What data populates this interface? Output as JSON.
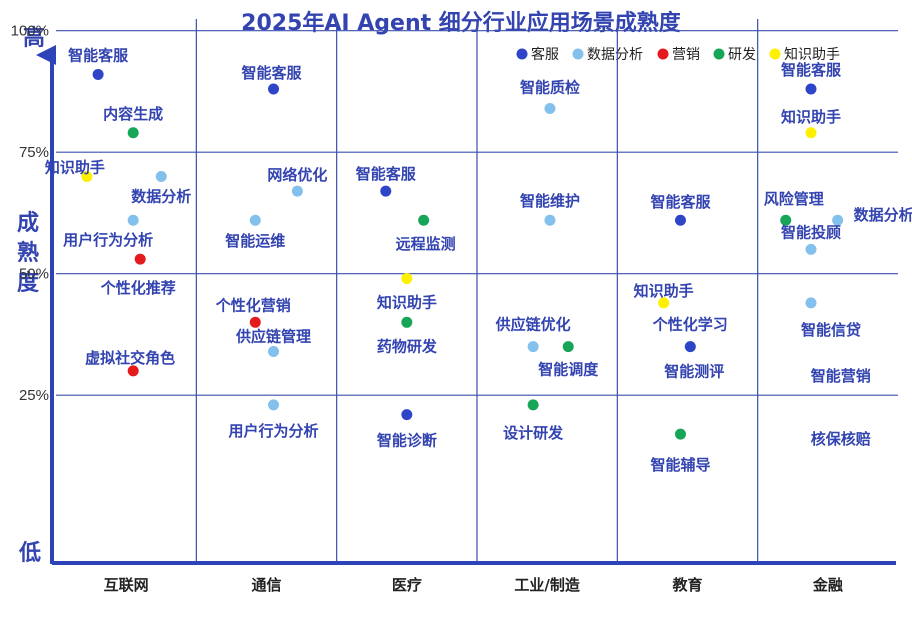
{
  "chart_data": {
    "type": "scatter",
    "title": "2025年AI Agent 细分行业应用场景成熟度",
    "ylabel": "成熟度",
    "y_high_label": "高",
    "y_low_label": "低",
    "categories": [
      "互联网",
      "通信",
      "医疗",
      "工业/制造",
      "教育",
      "金融"
    ],
    "y_ticks": [
      {
        "value": 100,
        "label": "100%"
      },
      {
        "value": 75,
        "label": "75%"
      },
      {
        "value": 50,
        "label": "50%"
      },
      {
        "value": 25,
        "label": "25%"
      }
    ],
    "ylim": [
      -5,
      102
    ],
    "grid": true,
    "legend_position": "top-right",
    "series": [
      {
        "name": "客服",
        "color": "#2f45c8"
      },
      {
        "name": "数据分析",
        "color": "#83c0ec"
      },
      {
        "name": "营销",
        "color": "#e41a1c"
      },
      {
        "name": "研发",
        "color": "#17a657"
      },
      {
        "name": "知识助手",
        "color": "#ffef00"
      }
    ],
    "points": [
      {
        "category": "互联网",
        "x": 0.3,
        "y": 91,
        "series": "客服",
        "label": "智能客服"
      },
      {
        "category": "互联网",
        "x": 0.55,
        "y": 79,
        "series": "研发",
        "label": "内容生成"
      },
      {
        "category": "互联网",
        "x": 0.75,
        "y": 70,
        "series": "数据分析",
        "label": "数据分析"
      },
      {
        "category": "互联网",
        "x": 0.22,
        "y": 70,
        "series": "知识助手",
        "label": "知识助手"
      },
      {
        "category": "互联网",
        "x": 0.55,
        "y": 61,
        "series": "数据分析",
        "label": "用户行为分析"
      },
      {
        "category": "互联网",
        "x": 0.6,
        "y": 53,
        "series": "营销",
        "label": "个性化推荐"
      },
      {
        "category": "互联网",
        "x": 0.55,
        "y": 30,
        "series": "营销",
        "label": "虚拟社交角色"
      },
      {
        "category": "通信",
        "x": 0.55,
        "y": 88,
        "series": "客服",
        "label": "智能客服"
      },
      {
        "category": "通信",
        "x": 0.72,
        "y": 67,
        "series": "数据分析",
        "label": "网络优化"
      },
      {
        "category": "通信",
        "x": 0.42,
        "y": 61,
        "series": "数据分析",
        "label": "智能运维"
      },
      {
        "category": "通信",
        "x": 0.42,
        "y": 40,
        "series": "营销",
        "label": "个性化营销"
      },
      {
        "category": "通信",
        "x": 0.55,
        "y": 34,
        "series": "数据分析",
        "label": "供应链管理"
      },
      {
        "category": "通信",
        "x": 0.55,
        "y": 23,
        "series": "数据分析",
        "label": "用户行为分析"
      },
      {
        "category": "医疗",
        "x": 0.35,
        "y": 67,
        "series": "客服",
        "label": "智能客服"
      },
      {
        "category": "医疗",
        "x": 0.62,
        "y": 61,
        "series": "研发",
        "label": "远程监测"
      },
      {
        "category": "医疗",
        "x": 0.5,
        "y": 49,
        "series": "知识助手",
        "label": "知识助手"
      },
      {
        "category": "医疗",
        "x": 0.5,
        "y": 40,
        "series": "研发",
        "label": "药物研发"
      },
      {
        "category": "医疗",
        "x": 0.5,
        "y": 21,
        "series": "客服",
        "label": "智能诊断"
      },
      {
        "category": "工业/制造",
        "x": 0.52,
        "y": 84,
        "series": "数据分析",
        "label": "智能质检"
      },
      {
        "category": "工业/制造",
        "x": 0.52,
        "y": 61,
        "series": "数据分析",
        "label": "智能维护"
      },
      {
        "category": "工业/制造",
        "x": 0.4,
        "y": 35,
        "series": "数据分析",
        "label": "供应链优化"
      },
      {
        "category": "工业/制造",
        "x": 0.65,
        "y": 35,
        "series": "研发",
        "label": "智能调度"
      },
      {
        "category": "工业/制造",
        "x": 0.4,
        "y": 23,
        "series": "研发",
        "label": "设计研发"
      },
      {
        "category": "教育",
        "x": 0.45,
        "y": 61,
        "series": "客服",
        "label": "智能客服"
      },
      {
        "category": "教育",
        "x": 0.33,
        "y": 44,
        "series": "知识助手",
        "label": "知识助手"
      },
      {
        "category": "教育",
        "x": 0.52,
        "y": 35,
        "series": "数据分析",
        "label": "智能测评"
      },
      {
        "category": "教育",
        "x": 0.52,
        "y": 35,
        "series": "客服",
        "label": "个性化学习"
      },
      {
        "category": "教育",
        "x": 0.45,
        "y": 17,
        "series": "研发",
        "label": "智能辅导"
      },
      {
        "category": "金融",
        "x": 0.38,
        "y": 88,
        "series": "客服",
        "label": "智能客服"
      },
      {
        "category": "金融",
        "x": 0.38,
        "y": 79,
        "series": "知识助手",
        "label": "知识助手"
      },
      {
        "category": "金融",
        "x": 0.2,
        "y": 61,
        "series": "研发",
        "label": "风险管理"
      },
      {
        "category": "金融",
        "x": 0.57,
        "y": 61,
        "series": "数据分析",
        "label": "数据分析"
      },
      {
        "category": "金融",
        "x": 0.38,
        "y": 55,
        "series": "数据分析",
        "label": "智能投顾"
      },
      {
        "category": "金融",
        "x": 0.38,
        "y": 44,
        "series": "数据分析",
        "label": "智能信贷"
      },
      {
        "category": "金融",
        "x": null,
        "y": 30,
        "series": null,
        "label": "智能营销"
      },
      {
        "category": "金融",
        "x": null,
        "y": 17,
        "series": null,
        "label": "核保核赔"
      }
    ]
  }
}
